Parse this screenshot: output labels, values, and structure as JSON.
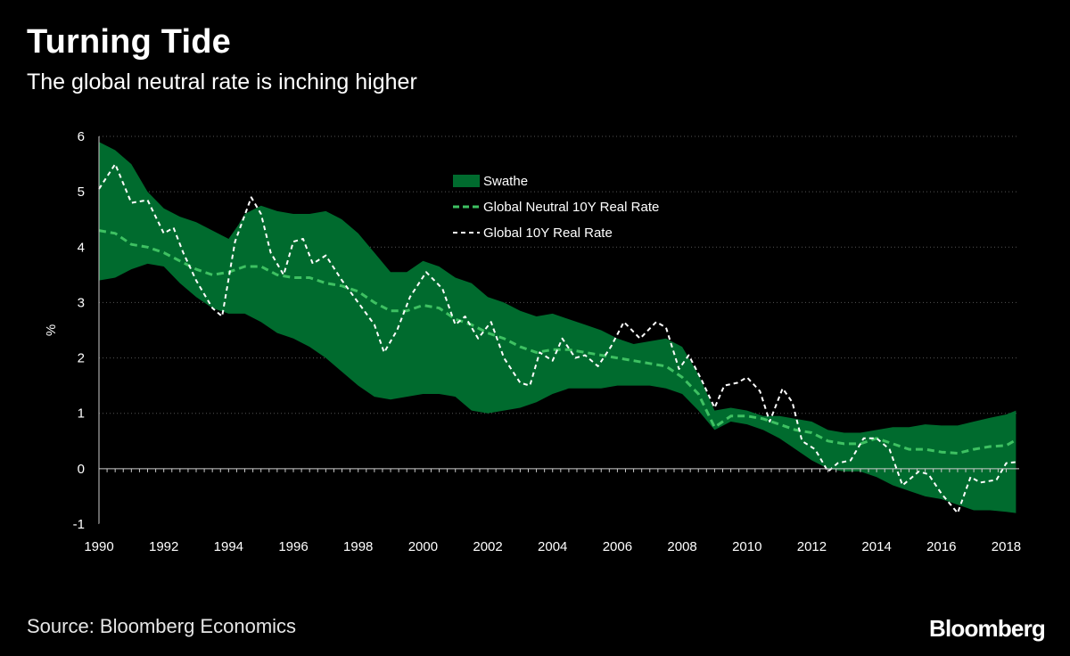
{
  "header": {
    "title": "Turning Tide",
    "subtitle": "The global neutral rate is inching higher"
  },
  "footer": {
    "source": "Source: Bloomberg Economics",
    "brand": "Bloomberg"
  },
  "colors": {
    "background": "#000000",
    "swathe": "#006b2e",
    "neutral_line": "#3ec162",
    "real_rate_line": "#ffffff",
    "grid": "#555555",
    "axis": "#cccccc"
  },
  "chart_data": {
    "type": "area",
    "title": "Turning Tide",
    "subtitle": "The global neutral rate is inching higher",
    "xlabel": "",
    "ylabel": "%",
    "xlim": [
      1990,
      2018.4
    ],
    "ylim": [
      -1,
      6
    ],
    "x_ticks": [
      1990,
      1992,
      1994,
      1996,
      1998,
      2000,
      2002,
      2004,
      2006,
      2008,
      2010,
      2012,
      2014,
      2016,
      2018
    ],
    "y_ticks": [
      -1,
      0,
      1,
      2,
      3,
      4,
      5,
      6
    ],
    "grid": "horizontal dotted",
    "legend_position": "top-center",
    "series": [
      {
        "name": "Swathe",
        "kind": "band",
        "upper": [
          [
            1990,
            5.9
          ],
          [
            1990.5,
            5.75
          ],
          [
            1991,
            5.5
          ],
          [
            1991.5,
            5.0
          ],
          [
            1992,
            4.7
          ],
          [
            1992.5,
            4.55
          ],
          [
            1993,
            4.45
          ],
          [
            1993.5,
            4.3
          ],
          [
            1994,
            4.15
          ],
          [
            1994.3,
            4.4
          ],
          [
            1994.5,
            4.6
          ],
          [
            1995,
            4.75
          ],
          [
            1995.5,
            4.65
          ],
          [
            1996,
            4.6
          ],
          [
            1996.5,
            4.6
          ],
          [
            1997,
            4.65
          ],
          [
            1997.5,
            4.5
          ],
          [
            1998,
            4.25
          ],
          [
            1998.5,
            3.9
          ],
          [
            1999,
            3.55
          ],
          [
            1999.5,
            3.55
          ],
          [
            2000,
            3.75
          ],
          [
            2000.5,
            3.65
          ],
          [
            2001,
            3.45
          ],
          [
            2001.5,
            3.35
          ],
          [
            2002,
            3.1
          ],
          [
            2002.5,
            3.0
          ],
          [
            2003,
            2.85
          ],
          [
            2003.5,
            2.75
          ],
          [
            2004,
            2.8
          ],
          [
            2004.5,
            2.7
          ],
          [
            2005,
            2.6
          ],
          [
            2005.5,
            2.5
          ],
          [
            2006,
            2.35
          ],
          [
            2006.5,
            2.25
          ],
          [
            2007,
            2.3
          ],
          [
            2007.5,
            2.35
          ],
          [
            2008,
            2.2
          ],
          [
            2008.5,
            1.7
          ],
          [
            2009,
            1.05
          ],
          [
            2009.5,
            1.1
          ],
          [
            2010,
            1.05
          ],
          [
            2010.5,
            0.95
          ],
          [
            2011,
            0.95
          ],
          [
            2011.5,
            0.9
          ],
          [
            2012,
            0.85
          ],
          [
            2012.5,
            0.7
          ],
          [
            2013,
            0.65
          ],
          [
            2013.5,
            0.65
          ],
          [
            2014,
            0.7
          ],
          [
            2014.5,
            0.75
          ],
          [
            2015,
            0.75
          ],
          [
            2015.5,
            0.8
          ],
          [
            2016,
            0.78
          ],
          [
            2016.5,
            0.78
          ],
          [
            2017,
            0.85
          ],
          [
            2017.5,
            0.92
          ],
          [
            2018,
            0.98
          ],
          [
            2018.3,
            1.05
          ]
        ],
        "lower": [
          [
            1990,
            3.4
          ],
          [
            1990.5,
            3.45
          ],
          [
            1991,
            3.6
          ],
          [
            1991.5,
            3.7
          ],
          [
            1992,
            3.65
          ],
          [
            1992.5,
            3.35
          ],
          [
            1993,
            3.1
          ],
          [
            1993.5,
            2.9
          ],
          [
            1994,
            2.8
          ],
          [
            1994.5,
            2.8
          ],
          [
            1995,
            2.65
          ],
          [
            1995.5,
            2.45
          ],
          [
            1996,
            2.35
          ],
          [
            1996.5,
            2.2
          ],
          [
            1997,
            2.0
          ],
          [
            1997.5,
            1.75
          ],
          [
            1998,
            1.5
          ],
          [
            1998.5,
            1.3
          ],
          [
            1999,
            1.25
          ],
          [
            1999.5,
            1.3
          ],
          [
            2000,
            1.35
          ],
          [
            2000.5,
            1.35
          ],
          [
            2001,
            1.3
          ],
          [
            2001.5,
            1.05
          ],
          [
            2002,
            1.0
          ],
          [
            2002.5,
            1.05
          ],
          [
            2003,
            1.1
          ],
          [
            2003.5,
            1.2
          ],
          [
            2004,
            1.35
          ],
          [
            2004.5,
            1.45
          ],
          [
            2005,
            1.45
          ],
          [
            2005.5,
            1.45
          ],
          [
            2006,
            1.5
          ],
          [
            2006.5,
            1.5
          ],
          [
            2007,
            1.5
          ],
          [
            2007.5,
            1.45
          ],
          [
            2008,
            1.35
          ],
          [
            2008.5,
            1.05
          ],
          [
            2009,
            0.7
          ],
          [
            2009.5,
            0.85
          ],
          [
            2010,
            0.8
          ],
          [
            2010.5,
            0.7
          ],
          [
            2011,
            0.55
          ],
          [
            2011.5,
            0.35
          ],
          [
            2012,
            0.15
          ],
          [
            2012.5,
            0.0
          ],
          [
            2013,
            -0.05
          ],
          [
            2013.5,
            -0.05
          ],
          [
            2014,
            -0.15
          ],
          [
            2014.5,
            -0.3
          ],
          [
            2015,
            -0.4
          ],
          [
            2015.5,
            -0.5
          ],
          [
            2016,
            -0.55
          ],
          [
            2016.5,
            -0.65
          ],
          [
            2017,
            -0.75
          ],
          [
            2017.5,
            -0.75
          ],
          [
            2018,
            -0.78
          ],
          [
            2018.3,
            -0.8
          ]
        ]
      },
      {
        "name": "Global Neutral 10Y Real Rate",
        "kind": "line",
        "dash": "dashed",
        "points": [
          [
            1990,
            4.3
          ],
          [
            1990.5,
            4.25
          ],
          [
            1991,
            4.05
          ],
          [
            1991.5,
            4.0
          ],
          [
            1992,
            3.9
          ],
          [
            1992.5,
            3.75
          ],
          [
            1993,
            3.6
          ],
          [
            1993.5,
            3.5
          ],
          [
            1994,
            3.55
          ],
          [
            1994.5,
            3.65
          ],
          [
            1995,
            3.65
          ],
          [
            1995.5,
            3.5
          ],
          [
            1996,
            3.45
          ],
          [
            1996.5,
            3.45
          ],
          [
            1997,
            3.35
          ],
          [
            1997.5,
            3.3
          ],
          [
            1998,
            3.2
          ],
          [
            1998.5,
            3.0
          ],
          [
            1999,
            2.85
          ],
          [
            1999.5,
            2.85
          ],
          [
            2000,
            2.95
          ],
          [
            2000.5,
            2.9
          ],
          [
            2001,
            2.7
          ],
          [
            2001.5,
            2.6
          ],
          [
            2002,
            2.45
          ],
          [
            2002.5,
            2.35
          ],
          [
            2003,
            2.2
          ],
          [
            2003.5,
            2.1
          ],
          [
            2004,
            2.15
          ],
          [
            2004.5,
            2.15
          ],
          [
            2005,
            2.1
          ],
          [
            2005.5,
            2.05
          ],
          [
            2006,
            2.0
          ],
          [
            2006.5,
            1.95
          ],
          [
            2007,
            1.9
          ],
          [
            2007.5,
            1.85
          ],
          [
            2008,
            1.65
          ],
          [
            2008.5,
            1.35
          ],
          [
            2009,
            0.75
          ],
          [
            2009.5,
            0.95
          ],
          [
            2010,
            0.95
          ],
          [
            2010.5,
            0.9
          ],
          [
            2011,
            0.8
          ],
          [
            2011.5,
            0.7
          ],
          [
            2012,
            0.65
          ],
          [
            2012.5,
            0.5
          ],
          [
            2013,
            0.45
          ],
          [
            2013.5,
            0.45
          ],
          [
            2014,
            0.55
          ],
          [
            2014.5,
            0.45
          ],
          [
            2015,
            0.35
          ],
          [
            2015.5,
            0.35
          ],
          [
            2016,
            0.3
          ],
          [
            2016.5,
            0.28
          ],
          [
            2017,
            0.35
          ],
          [
            2017.5,
            0.4
          ],
          [
            2018,
            0.42
          ],
          [
            2018.3,
            0.52
          ]
        ]
      },
      {
        "name": "Global 10Y Real Rate",
        "kind": "line",
        "dash": "dashed",
        "points": [
          [
            1990,
            5.05
          ],
          [
            1990.5,
            5.5
          ],
          [
            1991,
            4.8
          ],
          [
            1991.5,
            4.85
          ],
          [
            1992,
            4.25
          ],
          [
            1992.3,
            4.35
          ],
          [
            1992.6,
            3.9
          ],
          [
            1993,
            3.4
          ],
          [
            1993.5,
            2.9
          ],
          [
            1993.8,
            2.75
          ],
          [
            1994.2,
            4.1
          ],
          [
            1994.7,
            4.9
          ],
          [
            1995,
            4.6
          ],
          [
            1995.3,
            3.9
          ],
          [
            1995.7,
            3.5
          ],
          [
            1996,
            4.1
          ],
          [
            1996.3,
            4.15
          ],
          [
            1996.6,
            3.7
          ],
          [
            1997,
            3.85
          ],
          [
            1997.5,
            3.4
          ],
          [
            1998,
            3.0
          ],
          [
            1998.5,
            2.6
          ],
          [
            1998.8,
            2.1
          ],
          [
            1999.2,
            2.5
          ],
          [
            1999.6,
            3.1
          ],
          [
            2000.1,
            3.55
          ],
          [
            2000.6,
            3.25
          ],
          [
            2001,
            2.6
          ],
          [
            2001.3,
            2.75
          ],
          [
            2001.7,
            2.35
          ],
          [
            2002.1,
            2.65
          ],
          [
            2002.5,
            2.0
          ],
          [
            2003,
            1.55
          ],
          [
            2003.3,
            1.5
          ],
          [
            2003.6,
            2.1
          ],
          [
            2004,
            1.95
          ],
          [
            2004.3,
            2.35
          ],
          [
            2004.7,
            2.0
          ],
          [
            2005,
            2.05
          ],
          [
            2005.4,
            1.85
          ],
          [
            2005.8,
            2.2
          ],
          [
            2006.2,
            2.65
          ],
          [
            2006.7,
            2.35
          ],
          [
            2007.2,
            2.65
          ],
          [
            2007.5,
            2.55
          ],
          [
            2007.9,
            1.8
          ],
          [
            2008.2,
            2.05
          ],
          [
            2008.6,
            1.6
          ],
          [
            2009,
            1.1
          ],
          [
            2009.3,
            1.5
          ],
          [
            2009.7,
            1.55
          ],
          [
            2010,
            1.65
          ],
          [
            2010.4,
            1.4
          ],
          [
            2010.7,
            0.85
          ],
          [
            2011.1,
            1.45
          ],
          [
            2011.4,
            1.2
          ],
          [
            2011.7,
            0.5
          ],
          [
            2012.1,
            0.35
          ],
          [
            2012.5,
            -0.05
          ],
          [
            2012.8,
            0.1
          ],
          [
            2013.2,
            0.15
          ],
          [
            2013.6,
            0.55
          ],
          [
            2014,
            0.55
          ],
          [
            2014.4,
            0.35
          ],
          [
            2014.8,
            -0.3
          ],
          [
            2015.3,
            -0.05
          ],
          [
            2015.6,
            -0.1
          ],
          [
            2016,
            -0.45
          ],
          [
            2016.5,
            -0.8
          ],
          [
            2016.9,
            -0.15
          ],
          [
            2017.2,
            -0.25
          ],
          [
            2017.7,
            -0.2
          ],
          [
            2018,
            0.1
          ],
          [
            2018.3,
            0.12
          ]
        ]
      }
    ]
  }
}
